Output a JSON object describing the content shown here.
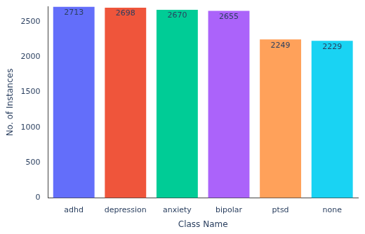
{
  "chart_data": {
    "type": "bar",
    "x_label": "Class Name",
    "y_label": "No. of Instances",
    "categories": [
      "adhd",
      "depression",
      "anxiety",
      "bipolar",
      "ptsd",
      "none"
    ],
    "values": [
      2713,
      2698,
      2670,
      2655,
      2249,
      2229
    ],
    "colors": [
      "#636efa",
      "#ef553b",
      "#00cc96",
      "#ab63fa",
      "#ffa15a",
      "#19d3f3"
    ],
    "ylim": [
      0,
      2713
    ],
    "yticks": [
      0,
      500,
      1000,
      1500,
      2000,
      2500
    ],
    "grid": false,
    "data_labels": true
  }
}
